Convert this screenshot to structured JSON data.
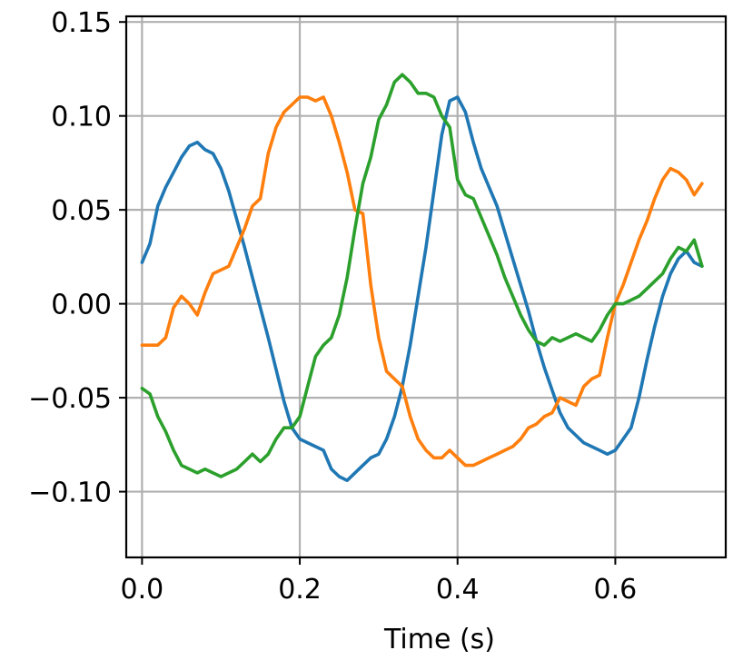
{
  "chart_data": {
    "type": "line",
    "title": "",
    "xlabel": "Time (s)",
    "ylabel": "",
    "xlim": [
      -0.02,
      0.74
    ],
    "ylim": [
      -0.135,
      0.153
    ],
    "x_ticks": [
      0.0,
      0.2,
      0.4,
      0.6
    ],
    "x_tick_labels": [
      "0.0",
      "0.2",
      "0.4",
      "0.6"
    ],
    "y_ticks": [
      -0.1,
      -0.05,
      0.0,
      0.05,
      0.1,
      0.15
    ],
    "y_tick_labels": [
      "−0.10",
      "−0.05",
      "0.00",
      "0.05",
      "0.10",
      "0.15"
    ],
    "grid": true,
    "legend": "none",
    "series": [
      {
        "color": "#1f77b4",
        "x": [
          0.0,
          0.01,
          0.02,
          0.03,
          0.04,
          0.05,
          0.06,
          0.07,
          0.08,
          0.09,
          0.1,
          0.11,
          0.12,
          0.13,
          0.14,
          0.15,
          0.16,
          0.17,
          0.18,
          0.19,
          0.2,
          0.21,
          0.22,
          0.23,
          0.24,
          0.25,
          0.26,
          0.27,
          0.28,
          0.29,
          0.3,
          0.31,
          0.32,
          0.33,
          0.34,
          0.35,
          0.36,
          0.37,
          0.38,
          0.39,
          0.4,
          0.41,
          0.42,
          0.43,
          0.44,
          0.45,
          0.46,
          0.47,
          0.48,
          0.49,
          0.5,
          0.51,
          0.52,
          0.53,
          0.54,
          0.55,
          0.56,
          0.57,
          0.58,
          0.59,
          0.6,
          0.61,
          0.62,
          0.63,
          0.64,
          0.65,
          0.66,
          0.67,
          0.68,
          0.69,
          0.7,
          0.71
        ],
        "y": [
          0.022,
          0.032,
          0.052,
          0.062,
          0.07,
          0.078,
          0.084,
          0.086,
          0.082,
          0.08,
          0.072,
          0.06,
          0.045,
          0.03,
          0.014,
          -0.002,
          -0.018,
          -0.035,
          -0.052,
          -0.066,
          -0.072,
          -0.074,
          -0.076,
          -0.078,
          -0.088,
          -0.092,
          -0.094,
          -0.09,
          -0.086,
          -0.082,
          -0.08,
          -0.072,
          -0.06,
          -0.044,
          -0.022,
          0.004,
          0.03,
          0.06,
          0.09,
          0.108,
          0.11,
          0.102,
          0.086,
          0.072,
          0.062,
          0.052,
          0.038,
          0.024,
          0.01,
          -0.004,
          -0.02,
          -0.034,
          -0.046,
          -0.058,
          -0.066,
          -0.07,
          -0.074,
          -0.076,
          -0.078,
          -0.08,
          -0.078,
          -0.072,
          -0.066,
          -0.05,
          -0.03,
          -0.012,
          0.004,
          0.016,
          0.024,
          0.028,
          0.022,
          0.02
        ]
      },
      {
        "color": "#ff7f0e",
        "x": [
          0.0,
          0.01,
          0.02,
          0.03,
          0.04,
          0.05,
          0.06,
          0.07,
          0.08,
          0.09,
          0.1,
          0.11,
          0.12,
          0.13,
          0.14,
          0.15,
          0.16,
          0.17,
          0.18,
          0.19,
          0.2,
          0.21,
          0.22,
          0.23,
          0.24,
          0.25,
          0.26,
          0.27,
          0.28,
          0.29,
          0.3,
          0.31,
          0.32,
          0.33,
          0.34,
          0.35,
          0.36,
          0.37,
          0.38,
          0.39,
          0.4,
          0.41,
          0.42,
          0.43,
          0.44,
          0.45,
          0.46,
          0.47,
          0.48,
          0.49,
          0.5,
          0.51,
          0.52,
          0.53,
          0.54,
          0.55,
          0.56,
          0.57,
          0.58,
          0.59,
          0.6,
          0.61,
          0.62,
          0.63,
          0.64,
          0.65,
          0.66,
          0.67,
          0.68,
          0.69,
          0.7,
          0.71
        ],
        "y": [
          -0.022,
          -0.022,
          -0.022,
          -0.018,
          -0.002,
          0.004,
          0.0,
          -0.006,
          0.006,
          0.016,
          0.018,
          0.02,
          0.03,
          0.04,
          0.052,
          0.056,
          0.08,
          0.094,
          0.102,
          0.106,
          0.11,
          0.11,
          0.108,
          0.11,
          0.1,
          0.086,
          0.07,
          0.05,
          0.048,
          0.01,
          -0.018,
          -0.036,
          -0.04,
          -0.044,
          -0.06,
          -0.072,
          -0.078,
          -0.082,
          -0.082,
          -0.078,
          -0.082,
          -0.086,
          -0.086,
          -0.084,
          -0.082,
          -0.08,
          -0.078,
          -0.076,
          -0.072,
          -0.066,
          -0.064,
          -0.06,
          -0.058,
          -0.05,
          -0.052,
          -0.054,
          -0.044,
          -0.04,
          -0.038,
          -0.018,
          0.0,
          0.01,
          0.022,
          0.034,
          0.044,
          0.056,
          0.066,
          0.072,
          0.07,
          0.066,
          0.058,
          0.064
        ]
      },
      {
        "color": "#2ca02c",
        "x": [
          0.0,
          0.01,
          0.02,
          0.03,
          0.04,
          0.05,
          0.06,
          0.07,
          0.08,
          0.09,
          0.1,
          0.11,
          0.12,
          0.13,
          0.14,
          0.15,
          0.16,
          0.17,
          0.18,
          0.19,
          0.2,
          0.21,
          0.22,
          0.23,
          0.24,
          0.25,
          0.26,
          0.27,
          0.28,
          0.29,
          0.3,
          0.31,
          0.32,
          0.33,
          0.34,
          0.35,
          0.36,
          0.37,
          0.38,
          0.39,
          0.4,
          0.41,
          0.42,
          0.43,
          0.44,
          0.45,
          0.46,
          0.47,
          0.48,
          0.49,
          0.5,
          0.51,
          0.52,
          0.53,
          0.54,
          0.55,
          0.56,
          0.57,
          0.58,
          0.59,
          0.6,
          0.61,
          0.62,
          0.63,
          0.64,
          0.65,
          0.66,
          0.67,
          0.68,
          0.69,
          0.7,
          0.71
        ],
        "y": [
          -0.045,
          -0.048,
          -0.06,
          -0.068,
          -0.078,
          -0.086,
          -0.088,
          -0.09,
          -0.088,
          -0.09,
          -0.092,
          -0.09,
          -0.088,
          -0.084,
          -0.08,
          -0.084,
          -0.08,
          -0.072,
          -0.066,
          -0.066,
          -0.06,
          -0.044,
          -0.028,
          -0.022,
          -0.018,
          -0.006,
          0.014,
          0.04,
          0.064,
          0.078,
          0.098,
          0.106,
          0.118,
          0.122,
          0.118,
          0.112,
          0.112,
          0.11,
          0.1,
          0.094,
          0.066,
          0.058,
          0.056,
          0.046,
          0.036,
          0.026,
          0.014,
          0.004,
          -0.006,
          -0.014,
          -0.02,
          -0.022,
          -0.018,
          -0.02,
          -0.018,
          -0.016,
          -0.018,
          -0.02,
          -0.014,
          -0.006,
          0.0,
          0.0,
          0.002,
          0.004,
          0.008,
          0.012,
          0.016,
          0.024,
          0.03,
          0.028,
          0.034,
          0.02
        ]
      }
    ]
  }
}
